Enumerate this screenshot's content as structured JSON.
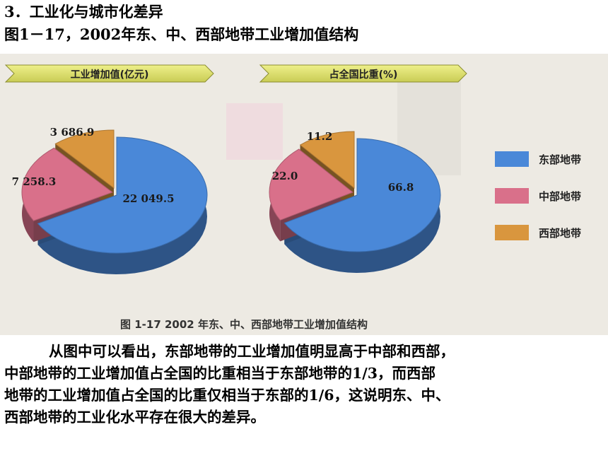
{
  "heading": {
    "section": "3．工业化与城市化差异",
    "figure_title": "图1－17，2002年东、中、西部地带工业增加值结构"
  },
  "chart_data": [
    {
      "type": "pie",
      "title": "工业增加值(亿元)",
      "categories": [
        "东部地带",
        "中部地带",
        "西部地带"
      ],
      "values": [
        22049.5,
        7258.3,
        3686.9
      ],
      "value_labels": [
        "22 049.5",
        "7 258.3",
        "3 686.9"
      ],
      "colors": [
        "#4a88d8",
        "#d9708a",
        "#d9963e"
      ]
    },
    {
      "type": "pie",
      "title": "占全国比重(%)",
      "categories": [
        "东部地带",
        "中部地带",
        "西部地带"
      ],
      "values": [
        66.8,
        22.0,
        11.2
      ],
      "value_labels": [
        "66.8",
        "22.0",
        "11.2"
      ],
      "colors": [
        "#4a88d8",
        "#d9708a",
        "#d9963e"
      ]
    }
  ],
  "legend": [
    {
      "label": "东部地带",
      "color": "#4a88d8"
    },
    {
      "label": "中部地带",
      "color": "#d9708a"
    },
    {
      "label": "西部地带",
      "color": "#d9963e"
    }
  ],
  "caption": "图 1-17   2002 年东、中、西部地带工业增加值结构",
  "paragraph": [
    "从图中可以看出，东部地带的工业增加值明显高于中部和西部，",
    "中部地带的工业增加值占全国的比重相当于东部地带的1/3，而西部",
    "地带的工业增加值占全国的比重仅相当于东部的1/6，这说明东、中、",
    "西部地带的工业化水平存在很大的差异。"
  ]
}
